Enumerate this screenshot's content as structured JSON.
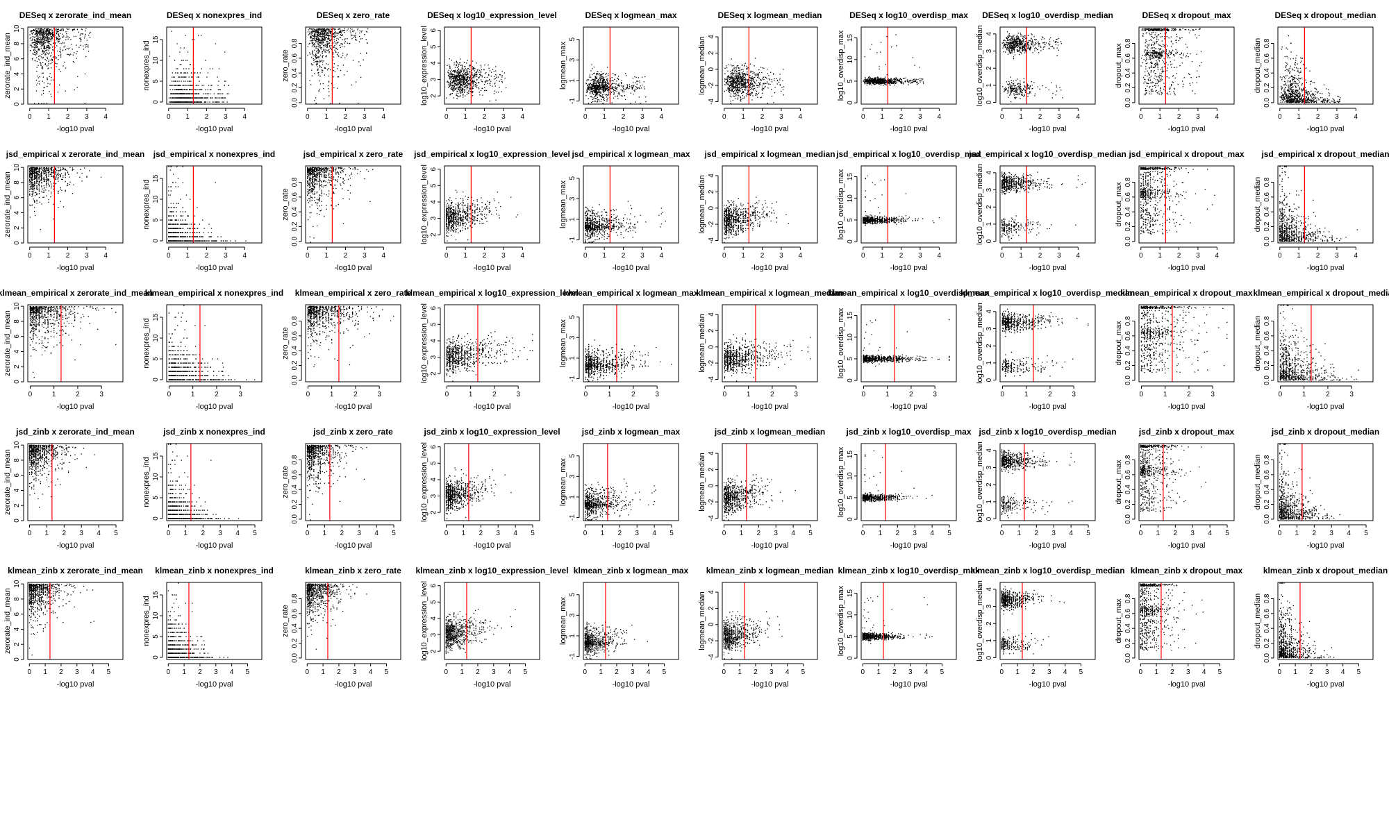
{
  "chart_data": {
    "type": "scatter",
    "layout": {
      "rows": 5,
      "cols": 10
    },
    "xlabel": "-log10 pval",
    "threshold_x": 1.3,
    "threshold_color": "#ff0000",
    "point_color": "#000000",
    "methods": [
      {
        "name": "DESeq",
        "xticks": [
          0,
          1,
          2,
          3,
          4
        ],
        "xlim": [
          -0.1,
          4.9
        ]
      },
      {
        "name": "jsd_empirical",
        "xticks": [
          0,
          1,
          2,
          3,
          4
        ],
        "xlim": [
          -0.1,
          4.9
        ]
      },
      {
        "name": "klmean_empirical",
        "xticks": [
          0,
          1,
          2,
          3
        ],
        "xlim": [
          -0.1,
          3.9
        ]
      },
      {
        "name": "jsd_zinb",
        "xticks": [
          0,
          1,
          2,
          3,
          4,
          5
        ],
        "xlim": [
          -0.1,
          5.4
        ]
      },
      {
        "name": "klmean_zinb",
        "xticks": [
          0,
          1,
          2,
          3,
          4,
          5
        ],
        "xlim": [
          -0.1,
          5.9
        ]
      }
    ],
    "variables": [
      {
        "name": "zerorate_ind_mean",
        "ylabel": "zerorate_ind_mean",
        "yticks": [
          "0",
          "2",
          "4",
          "6",
          "8",
          "10"
        ],
        "ylim": [
          0,
          10.2
        ]
      },
      {
        "name": "nonexpres_ind",
        "ylabel": "nonexpres_ind",
        "yticks": [
          "0",
          "5",
          "10",
          "15"
        ],
        "ylim": [
          -0.5,
          18
        ]
      },
      {
        "name": "zero_rate",
        "ylabel": "zero_rate",
        "yticks": [
          "0.0",
          "0.2",
          "0.4",
          "0.6",
          "0.8"
        ],
        "ylim": [
          -0.02,
          1.02
        ]
      },
      {
        "name": "log10_expression_level",
        "ylabel": "log10_expression_level",
        "yticks": [
          "2",
          "3",
          "4",
          "5",
          "6"
        ],
        "ylim": [
          1.5,
          6.2
        ]
      },
      {
        "name": "logmean_max",
        "ylabel": "logmean_max",
        "yticks": [
          "-1",
          "1",
          "3",
          "5"
        ],
        "ylim": [
          -1.3,
          6.2
        ]
      },
      {
        "name": "logmean_median",
        "ylabel": "logmean_median",
        "yticks": [
          "-4",
          "-2",
          "0",
          "2",
          "4"
        ],
        "ylim": [
          -4.3,
          5.2
        ]
      },
      {
        "name": "log10_overdisp_max",
        "ylabel": "log10_overdisp_max",
        "yticks": [
          "0",
          "5",
          "10",
          "15"
        ],
        "ylim": [
          -0.3,
          17.5
        ]
      },
      {
        "name": "log10_overdisp_median",
        "ylabel": "log10_overdisp_median",
        "yticks": [
          "0",
          "1",
          "2",
          "3",
          "4"
        ],
        "ylim": [
          -0.1,
          4.4
        ]
      },
      {
        "name": "dropout_max",
        "ylabel": "dropout_max",
        "yticks": [
          "0.0",
          "0.2",
          "0.4",
          "0.6",
          "0.8"
        ],
        "ylim": [
          -0.02,
          1.02
        ]
      },
      {
        "name": "dropout_median",
        "ylabel": "dropout_median",
        "yticks": [
          "0.0",
          "0.2",
          "0.4",
          "0.6",
          "0.8"
        ],
        "ylim": [
          -0.02,
          1.02
        ]
      }
    ],
    "panel_titles": [
      [
        "DESeq x zerorate_ind_mean",
        "DESeq x nonexpres_ind",
        "DESeq x zero_rate",
        "DESeq x log10_expression_level",
        "DESeq x logmean_max",
        "DESeq x logmean_median",
        "DESeq x log10_overdisp_max",
        "DESeq x log10_overdisp_median",
        "DESeq x dropout_max",
        "DESeq x dropout_median"
      ],
      [
        "jsd_empirical x zerorate_ind_mean",
        "jsd_empirical x nonexpres_ind",
        "jsd_empirical x zero_rate",
        "jsd_empirical x log10_expression_level",
        "jsd_empirical x logmean_max",
        "jsd_empirical x logmean_median",
        "jsd_empirical x log10_overdisp_max",
        "jsd_empirical x log10_overdisp_median",
        "jsd_empirical x dropout_max",
        "jsd_empirical x dropout_median"
      ],
      [
        "klmean_empirical x zerorate_ind_mean",
        "klmean_empirical x nonexpres_ind",
        "klmean_empirical x zero_rate",
        "klmean_empirical x log10_expression_level",
        "klmean_empirical x logmean_max",
        "klmean_empirical x logmean_median",
        "klmean_empirical x log10_overdisp_max",
        "klmean_empirical x log10_overdisp_median",
        "klmean_empirical x dropout_max",
        "klmean_empirical x dropout_median"
      ],
      [
        "jsd_zinb x zerorate_ind_mean",
        "jsd_zinb x nonexpres_ind",
        "jsd_zinb x zero_rate",
        "jsd_zinb x log10_expression_level",
        "jsd_zinb x logmean_max",
        "jsd_zinb x logmean_median",
        "jsd_zinb x log10_overdisp_max",
        "jsd_zinb x log10_overdisp_median",
        "jsd_zinb x dropout_max",
        "jsd_zinb x dropout_median"
      ],
      [
        "klmean_zinb x zerorate_ind_mean",
        "klmean_zinb x nonexpres_ind",
        "klmean_zinb x zero_rate",
        "klmean_zinb x log10_expression_level",
        "klmean_zinb x logmean_max",
        "klmean_zinb x logmean_median",
        "klmean_zinb x log10_overdisp_max",
        "klmean_zinb x log10_overdisp_median",
        "klmean_zinb x dropout_max",
        "klmean_zinb x dropout_median"
      ]
    ]
  }
}
